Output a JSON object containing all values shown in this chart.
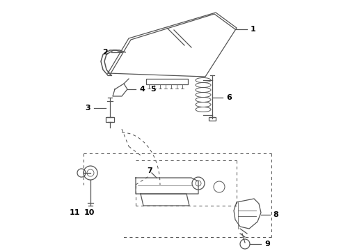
{
  "bg_color": "#ffffff",
  "line_color": "#555555",
  "label_color": "#000000",
  "label_fontsize": 8,
  "fig_width": 4.9,
  "fig_height": 3.6,
  "dpi": 100
}
